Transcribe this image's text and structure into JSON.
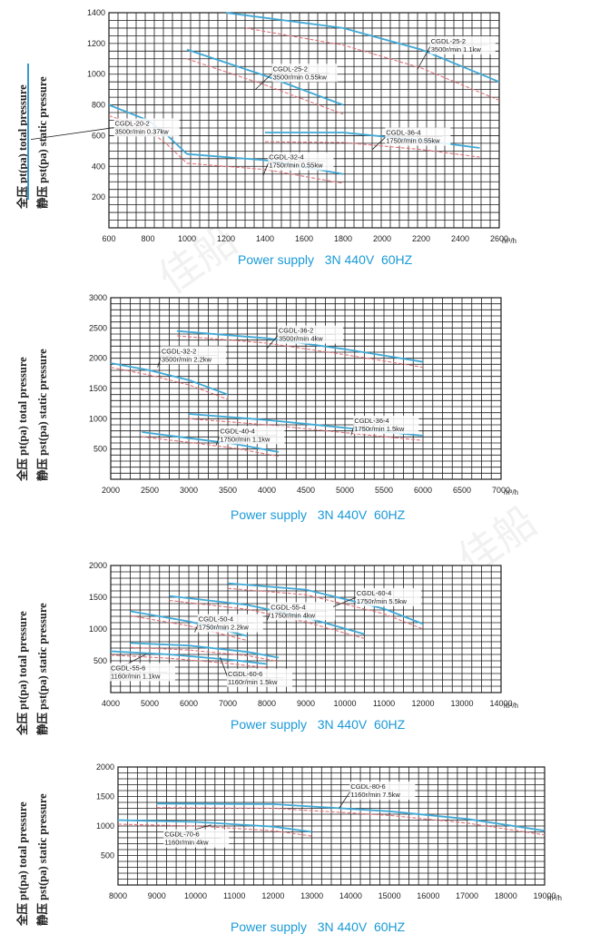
{
  "chart_data": [
    {
      "type": "line",
      "xlim": [
        600,
        2600
      ],
      "ylim": [
        0,
        1400
      ],
      "x_ticks": [
        "600",
        "800",
        "1000",
        "1200",
        "1400",
        "1600",
        "1800",
        "2000",
        "2200",
        "2400",
        "2600"
      ],
      "y_ticks": [
        "200",
        "400",
        "600",
        "800",
        "1000",
        "1200",
        "1400"
      ],
      "x_unit": "m³/h",
      "series": [
        {
          "kind": "total",
          "x": [
            600,
            800,
            900,
            1000
          ],
          "y": [
            800,
            700,
            600,
            480
          ]
        },
        {
          "kind": "static",
          "x": [
            600,
            800,
            900,
            1000
          ],
          "y": [
            730,
            640,
            540,
            420
          ]
        },
        {
          "kind": "total",
          "x": [
            1000,
            1400,
            1800
          ],
          "y": [
            480,
            440,
            350
          ]
        },
        {
          "kind": "static",
          "x": [
            1000,
            1400,
            1800
          ],
          "y": [
            420,
            380,
            290
          ]
        },
        {
          "kind": "total",
          "x": [
            1000,
            1400,
            1800
          ],
          "y": [
            1160,
            990,
            800
          ]
        },
        {
          "kind": "static",
          "x": [
            1000,
            1400,
            1800
          ],
          "y": [
            1100,
            930,
            740
          ]
        },
        {
          "kind": "total",
          "x": [
            1400,
            1800,
            2200,
            2500
          ],
          "y": [
            620,
            620,
            570,
            520
          ]
        },
        {
          "kind": "static",
          "x": [
            1400,
            1800,
            2200,
            2500
          ],
          "y": [
            560,
            555,
            510,
            460
          ]
        },
        {
          "kind": "total",
          "x": [
            1200,
            1800,
            2200,
            2600
          ],
          "y": [
            1400,
            1300,
            1160,
            950
          ]
        },
        {
          "kind": "static",
          "x": [
            1300,
            1800,
            2200,
            2600
          ],
          "y": [
            1300,
            1190,
            1040,
            830
          ]
        }
      ],
      "annotations": [
        {
          "model": "CGDL-20-2",
          "spec": "3500r/min 0.37kw",
          "x": 630,
          "y": 665,
          "ax": 200,
          "ay": 575
        },
        {
          "model": "CGDL-25-2",
          "spec": "3500r/min 0.55kw",
          "x": 1440,
          "y": 1020,
          "ax": 1350,
          "ay": 900
        },
        {
          "model": "CGDL-25-2",
          "spec": "3500r/min 1.1kw",
          "x": 2250,
          "y": 1200,
          "ax": 2180,
          "ay": 1030
        },
        {
          "model": "CGDL-36-4",
          "spec": "1750r/min 0.55kw",
          "x": 2020,
          "y": 605,
          "ax": 1950,
          "ay": 510
        },
        {
          "model": "CGDL-32-4",
          "spec": "1750r/min 0.55kw",
          "x": 1420,
          "y": 445,
          "ax": 1390,
          "ay": 340
        }
      ]
    },
    {
      "type": "line",
      "xlim": [
        2000,
        7000
      ],
      "ylim": [
        0,
        3000
      ],
      "x_ticks": [
        "2000",
        "2500",
        "3000",
        "3500",
        "4000",
        "4500",
        "5000",
        "5500",
        "6000",
        "6500",
        "7000"
      ],
      "y_ticks": [
        "500",
        "1000",
        "1500",
        "2000",
        "2500",
        "3000"
      ],
      "x_unit": "m³/h",
      "series": [
        {
          "kind": "total",
          "x": [
            2000,
            2500,
            3000,
            3500
          ],
          "y": [
            1920,
            1800,
            1640,
            1400
          ]
        },
        {
          "kind": "static",
          "x": [
            2000,
            2500,
            3000,
            3500
          ],
          "y": [
            1850,
            1720,
            1560,
            1320
          ]
        },
        {
          "kind": "total",
          "x": [
            2850,
            4000,
            5000,
            6000
          ],
          "y": [
            2450,
            2330,
            2150,
            1940
          ]
        },
        {
          "kind": "static",
          "x": [
            2850,
            4000,
            5000,
            6000
          ],
          "y": [
            2370,
            2250,
            2060,
            1850
          ]
        },
        {
          "kind": "total",
          "x": [
            2400,
            3000,
            3600,
            4150
          ],
          "y": [
            780,
            680,
            580,
            450
          ]
        },
        {
          "kind": "static",
          "x": [
            2400,
            3000,
            3600,
            4150
          ],
          "y": [
            700,
            610,
            510,
            380
          ]
        },
        {
          "kind": "total",
          "x": [
            3000,
            4000,
            5000,
            6000
          ],
          "y": [
            1080,
            980,
            850,
            720
          ]
        },
        {
          "kind": "static",
          "x": [
            3000,
            4000,
            5000,
            6000
          ],
          "y": [
            1000,
            900,
            770,
            640
          ]
        }
      ],
      "annotations": [
        {
          "model": "CGDL-32-2",
          "spec": "3500r/min 2.2kw",
          "x": 2650,
          "y": 2080,
          "ax": 2600,
          "ay": 1850
        },
        {
          "model": "CGDL-36-2",
          "spec": "3500r/min 4kw",
          "x": 4150,
          "y": 2420,
          "ax": 4000,
          "ay": 2160
        },
        {
          "model": "CGDL-40-4",
          "spec": "1750r/min 1.1kw",
          "x": 3400,
          "y": 760,
          "ax": 3350,
          "ay": 560
        },
        {
          "model": "CGDL-36-4",
          "spec": "1750r/min 1.5kw",
          "x": 5120,
          "y": 930,
          "ax": 5080,
          "ay": 730
        }
      ]
    },
    {
      "type": "line",
      "xlim": [
        4000,
        14000
      ],
      "ylim": [
        0,
        2000
      ],
      "x_ticks": [
        "4000",
        "5000",
        "6000",
        "7000",
        "8000",
        "9000",
        "10000",
        "11000",
        "12000",
        "13000",
        "14000"
      ],
      "y_ticks": [
        "500",
        "1000",
        "1500",
        "2000"
      ],
      "x_unit": "m³/h",
      "series": [
        {
          "kind": "total",
          "x": [
            4000,
            5500,
            7000,
            8000
          ],
          "y": [
            650,
            600,
            520,
            450
          ]
        },
        {
          "kind": "static",
          "x": [
            4000,
            5500,
            7000,
            8000
          ],
          "y": [
            590,
            540,
            460,
            390
          ]
        },
        {
          "kind": "total",
          "x": [
            4500,
            6000,
            7500,
            8300
          ],
          "y": [
            780,
            740,
            640,
            550
          ]
        },
        {
          "kind": "static",
          "x": [
            4500,
            6000,
            7500,
            8300
          ],
          "y": [
            710,
            670,
            580,
            490
          ]
        },
        {
          "kind": "total",
          "x": [
            4500,
            6000,
            7500
          ],
          "y": [
            1280,
            1120,
            890
          ]
        },
        {
          "kind": "static",
          "x": [
            4500,
            6000,
            7500
          ],
          "y": [
            1210,
            1050,
            820
          ]
        },
        {
          "kind": "total",
          "x": [
            5500,
            7500,
            9000,
            10500
          ],
          "y": [
            1520,
            1380,
            1180,
            920
          ]
        },
        {
          "kind": "static",
          "x": [
            5500,
            7500,
            9000,
            10500
          ],
          "y": [
            1450,
            1310,
            1110,
            850
          ]
        },
        {
          "kind": "total",
          "x": [
            7000,
            9000,
            11000,
            12000
          ],
          "y": [
            1720,
            1620,
            1320,
            1080
          ]
        },
        {
          "kind": "static",
          "x": [
            7000,
            9000,
            11000,
            12000
          ],
          "y": [
            1640,
            1540,
            1240,
            1000
          ]
        }
      ],
      "annotations": [
        {
          "model": "CGDL-50-4",
          "spec": "1750r/min 2.2kw",
          "x": 6250,
          "y": 1120,
          "ax": 6150,
          "ay": 950
        },
        {
          "model": "CGDL-55-4",
          "spec": "1750r/min 4kw",
          "x": 8100,
          "y": 1310,
          "ax": 8000,
          "ay": 1130
        },
        {
          "model": "CGDL-60-4",
          "spec": "1750r/min 5.5kw",
          "x": 10300,
          "y": 1530,
          "ax": 9700,
          "ay": 1350
        },
        {
          "model": "CGDL-55-6",
          "spec": "1160r/min 1.1kw",
          "x": 4000,
          "y": 350,
          "ax": 4900,
          "ay": 600
        },
        {
          "model": "CGDL-60-6",
          "spec": "1160r/min 1.5kw",
          "x": 7000,
          "y": 260,
          "ax": 6800,
          "ay": 560
        }
      ]
    },
    {
      "type": "line",
      "xlim": [
        8000,
        19000
      ],
      "ylim": [
        0,
        2000
      ],
      "x_ticks": [
        "8000",
        "9000",
        "10000",
        "11000",
        "12000",
        "13000",
        "14000",
        "15000",
        "16000",
        "17000",
        "18000",
        "19000"
      ],
      "y_ticks": [
        "500",
        "1000",
        "1500",
        "2000"
      ],
      "x_unit": "m³/h",
      "series": [
        {
          "kind": "total",
          "x": [
            8000,
            10000,
            12000,
            13000
          ],
          "y": [
            1100,
            1070,
            990,
            900
          ]
        },
        {
          "kind": "static",
          "x": [
            8000,
            10000,
            12000,
            13000
          ],
          "y": [
            1030,
            1000,
            920,
            830
          ]
        },
        {
          "kind": "total",
          "x": [
            9000,
            12000,
            15000,
            17000,
            19000
          ],
          "y": [
            1380,
            1370,
            1250,
            1120,
            920
          ]
        },
        {
          "kind": "static",
          "x": [
            9000,
            12000,
            15000,
            17000,
            19000
          ],
          "y": [
            1310,
            1300,
            1180,
            1050,
            850
          ]
        }
      ],
      "annotations": [
        {
          "model": "CGDL-70-6",
          "spec": "1160r/min 4kw",
          "x": 9200,
          "y": 820,
          "ax": 10400,
          "ay": 1020
        },
        {
          "model": "CGDL-80-6",
          "spec": "1160r/min 7.5kw",
          "x": 14000,
          "y": 1630,
          "ax": 13700,
          "ay": 1300
        }
      ]
    }
  ],
  "axis_labels": {
    "total_cn": "全压",
    "total": "pt(pa)  total pressure",
    "static_cn": "静压",
    "static": "pst(pa)  static pressure"
  },
  "footer": "Power supply   3N 440V  60HZ",
  "watermark": "佳船",
  "colors": {
    "total": "#3fa8d6",
    "static": "#e0707a",
    "grid": "#1b1b1b",
    "footer": "#1a9ad6"
  }
}
